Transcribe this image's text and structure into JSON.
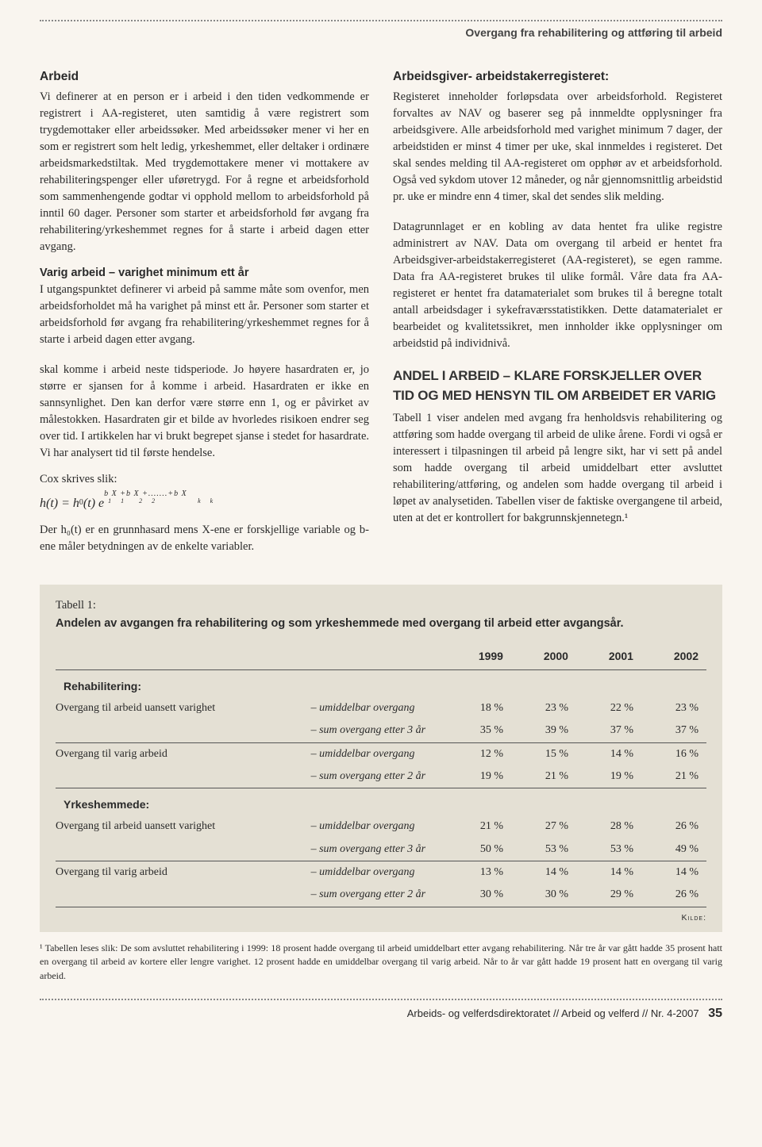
{
  "header": {
    "title": "Overgang fra rehabilitering og attføring til arbeid"
  },
  "leftCol": {
    "box": {
      "title": "Arbeid",
      "p1": "Vi definerer at en person er i arbeid i den tiden vedkommende er registrert i AA-registeret, uten samtidig å være registrert som trygdemottaker eller arbeidssøker. Med arbeidssøker mener vi her en som er registrert som helt ledig, yrkeshemmet, eller deltaker i ordinære arbeidsmarkedstiltak. Med trygdemottakere mener vi mottakere av rehabiliteringspenger eller uføretrygd. For å regne et arbeidsforhold som sammenhengende godtar vi opphold mellom to arbeidsforhold på inntil 60 dager. Personer som starter et arbeidsforhold før avgang fra rehabilitering/yrkeshemmet regnes for å starte i arbeid dagen etter avgang.",
      "sub": "Varig arbeid – varighet minimum ett år",
      "p2": "I utgangspunktet definerer vi arbeid på samme måte som ovenfor, men arbeidsforholdet må ha varighet på minst ett år. Personer som starter et arbeidsforhold før avgang fra rehabilitering/yrkeshemmet regnes for å starte i arbeid dagen etter avgang."
    },
    "p3": "skal komme i arbeid neste tidsperiode. Jo høyere hasardraten er, jo større er sjansen for å komme i arbeid. Hasardraten er ikke en sannsynlighet. Den kan derfor være større enn 1, og er påvirket av målestokken. Hasardraten gir et bilde av hvorledes risikoen endrer seg over tid. I artikkelen har vi brukt begrepet sjanse i stedet for hasardrate. Vi har analysert tid til første hendelse.",
    "cox_label": "Cox skrives slik:",
    "p4": "Der h₀(t) er en grunnhasard mens X-ene er forskjellige variable og b-ene måler betydningen av de enkelte variabler."
  },
  "rightCol": {
    "box": {
      "title": "Arbeidsgiver- arbeidstakerregisteret:",
      "p1": "Registeret inneholder forløpsdata over arbeidsforhold. Registeret forvaltes av NAV og baserer seg på innmeldte opplysninger fra arbeidsgivere. Alle arbeidsforhold med varighet minimum 7 dager, der arbeidstiden er minst 4 timer per uke, skal innmeldes i registeret. Det skal sendes melding til AA-registeret om opphør av et arbeidsforhold. Også ved sykdom utover 12 måneder, og når gjennomsnittlig arbeidstid pr. uke er mindre enn 4 timer, skal det sendes slik melding."
    },
    "p2": "Datagrunnlaget er en kobling av data hentet fra ulike registre administrert av NAV. Data om overgang til arbeid er hentet fra Arbeidsgiver-arbeidstakerregisteret (AA-registeret), se egen ramme. Data fra AA-registeret brukes til ulike formål. Våre data fra AA-registeret er hentet fra datamaterialet som brukes til å beregne totalt antall arbeidsdager i sykefraværsstatistikken. Dette datamaterialet er bearbeidet og kvalitetssikret, men innholder ikke opplysninger om arbeidstid på individnivå.",
    "heading": "ANDEL I ARBEID – KLARE FORSKJELLER OVER TID OG MED HENSYN TIL OM ARBEIDET ER VARIG",
    "p3": "Tabell 1 viser andelen med avgang fra henholdsvis rehabilitering og attføring som hadde overgang til arbeid de ulike årene. Fordi vi også er interessert i tilpasningen til arbeid på lengre sikt, har vi sett på andel som hadde overgang til arbeid umiddelbart etter avsluttet rehabilitering/attføring, og andelen som hadde overgang til arbeid i løpet av analysetiden. Tabellen viser de faktiske overgangene til arbeid, uten at det er kontrollert for bakgrunnskjennetegn.¹"
  },
  "table": {
    "label": "Tabell 1:",
    "caption": "Andelen av avgangen fra rehabilitering og som yrkeshemmede med overgang til arbeid etter avgangsår.",
    "year_headers": [
      "1999",
      "2000",
      "2001",
      "2002"
    ],
    "groups": [
      {
        "name": "Rehabilitering:",
        "rows": [
          {
            "label": "Overgang til arbeid uansett varighet",
            "sub": [
              {
                "t": "– umiddelbar overgang",
                "v": [
                  "18 %",
                  "23 %",
                  "22 %",
                  "23 %"
                ]
              },
              {
                "t": "– sum overgang etter 3 år",
                "v": [
                  "35 %",
                  "39 %",
                  "37 %",
                  "37 %"
                ],
                "line": true
              }
            ]
          },
          {
            "label": "Overgang til varig arbeid",
            "sub": [
              {
                "t": "– umiddelbar overgang",
                "v": [
                  "12 %",
                  "15 %",
                  "14 %",
                  "16 %"
                ]
              },
              {
                "t": "– sum overgang etter 2 år",
                "v": [
                  "19 %",
                  "21 %",
                  "19 %",
                  "21 %"
                ],
                "line": true
              }
            ]
          }
        ]
      },
      {
        "name": "Yrkeshemmede:",
        "rows": [
          {
            "label": "Overgang til arbeid uansett varighet",
            "sub": [
              {
                "t": "– umiddelbar overgang",
                "v": [
                  "21 %",
                  "27 %",
                  "28 %",
                  "26 %"
                ]
              },
              {
                "t": "– sum overgang etter 3 år",
                "v": [
                  "50 %",
                  "53 %",
                  "53 %",
                  "49 %"
                ],
                "line": true
              }
            ]
          },
          {
            "label": "Overgang til varig arbeid",
            "sub": [
              {
                "t": "– umiddelbar overgang",
                "v": [
                  "13 %",
                  "14 %",
                  "14 %",
                  "14 %"
                ]
              },
              {
                "t": "– sum overgang etter 2 år",
                "v": [
                  "30 %",
                  "30 %",
                  "29 %",
                  "26 %"
                ],
                "line": true
              }
            ]
          }
        ]
      }
    ],
    "kilde": "Kilde:"
  },
  "footnote": "¹ Tabellen leses slik: De som avsluttet rehabilitering i 1999: 18 prosent hadde overgang til arbeid umiddelbart etter avgang rehabilitering. Når tre år var gått hadde 35 prosent hatt en overgang til arbeid av kortere eller lengre varighet. 12 prosent hadde en umiddelbar overgang til varig arbeid. Når to år var gått hadde 19 prosent hatt en overgang til varig arbeid.",
  "footer": {
    "text": "Arbeids- og velferdsdirektoratet // Arbeid og velferd // Nr. 4-2007",
    "page": "35"
  }
}
